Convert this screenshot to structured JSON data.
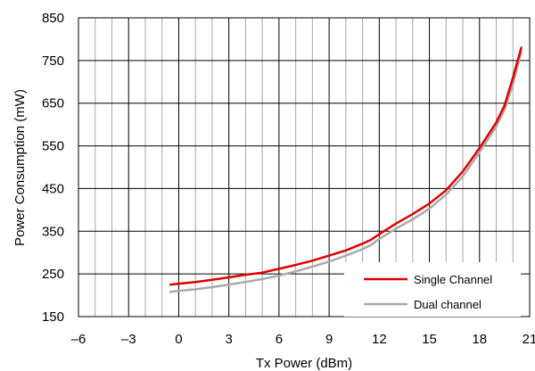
{
  "chart_data": {
    "type": "line",
    "xlabel": "Tx Power (dBm)",
    "ylabel": "Power Consumption (mW)",
    "xlim": [
      -6,
      21
    ],
    "ylim": [
      150,
      850
    ],
    "x_ticks": [
      -6,
      -3,
      0,
      3,
      6,
      9,
      12,
      15,
      18,
      21
    ],
    "x_tick_labels": [
      "–6",
      "–3",
      "0",
      "3",
      "6",
      "9",
      "12",
      "15",
      "18",
      "21"
    ],
    "y_ticks": [
      150,
      250,
      350,
      450,
      550,
      650,
      750,
      850
    ],
    "y_tick_labels": [
      "150",
      "250",
      "350",
      "450",
      "550",
      "650",
      "750",
      "850"
    ],
    "grid": true,
    "legend_position": "bottom-right",
    "series": [
      {
        "name": "Single Channel",
        "color": "#e00000",
        "x": [
          -0.5,
          0,
          1,
          2,
          3,
          4,
          5,
          6,
          7,
          8,
          9,
          10,
          11,
          11.5,
          12,
          13,
          14,
          15,
          16,
          17,
          18,
          19,
          19.5,
          20,
          20.5
        ],
        "y": [
          225,
          227,
          231,
          236,
          242,
          248,
          253,
          262,
          271,
          281,
          293,
          305,
          321,
          330,
          343,
          368,
          390,
          415,
          446,
          490,
          545,
          605,
          645,
          710,
          780
        ]
      },
      {
        "name": "Dual channel",
        "color": "#aaaaaa",
        "x": [
          -0.5,
          0,
          1,
          2,
          3,
          4,
          5,
          6,
          7,
          8,
          9,
          10,
          11,
          11.5,
          12,
          13,
          14,
          15,
          16,
          17,
          18,
          19,
          19.5,
          20,
          20.5
        ],
        "y": [
          208,
          210,
          214,
          219,
          225,
          231,
          238,
          246,
          256,
          267,
          279,
          293,
          308,
          318,
          332,
          356,
          378,
          403,
          436,
          478,
          535,
          595,
          635,
          695,
          770
        ]
      }
    ]
  }
}
